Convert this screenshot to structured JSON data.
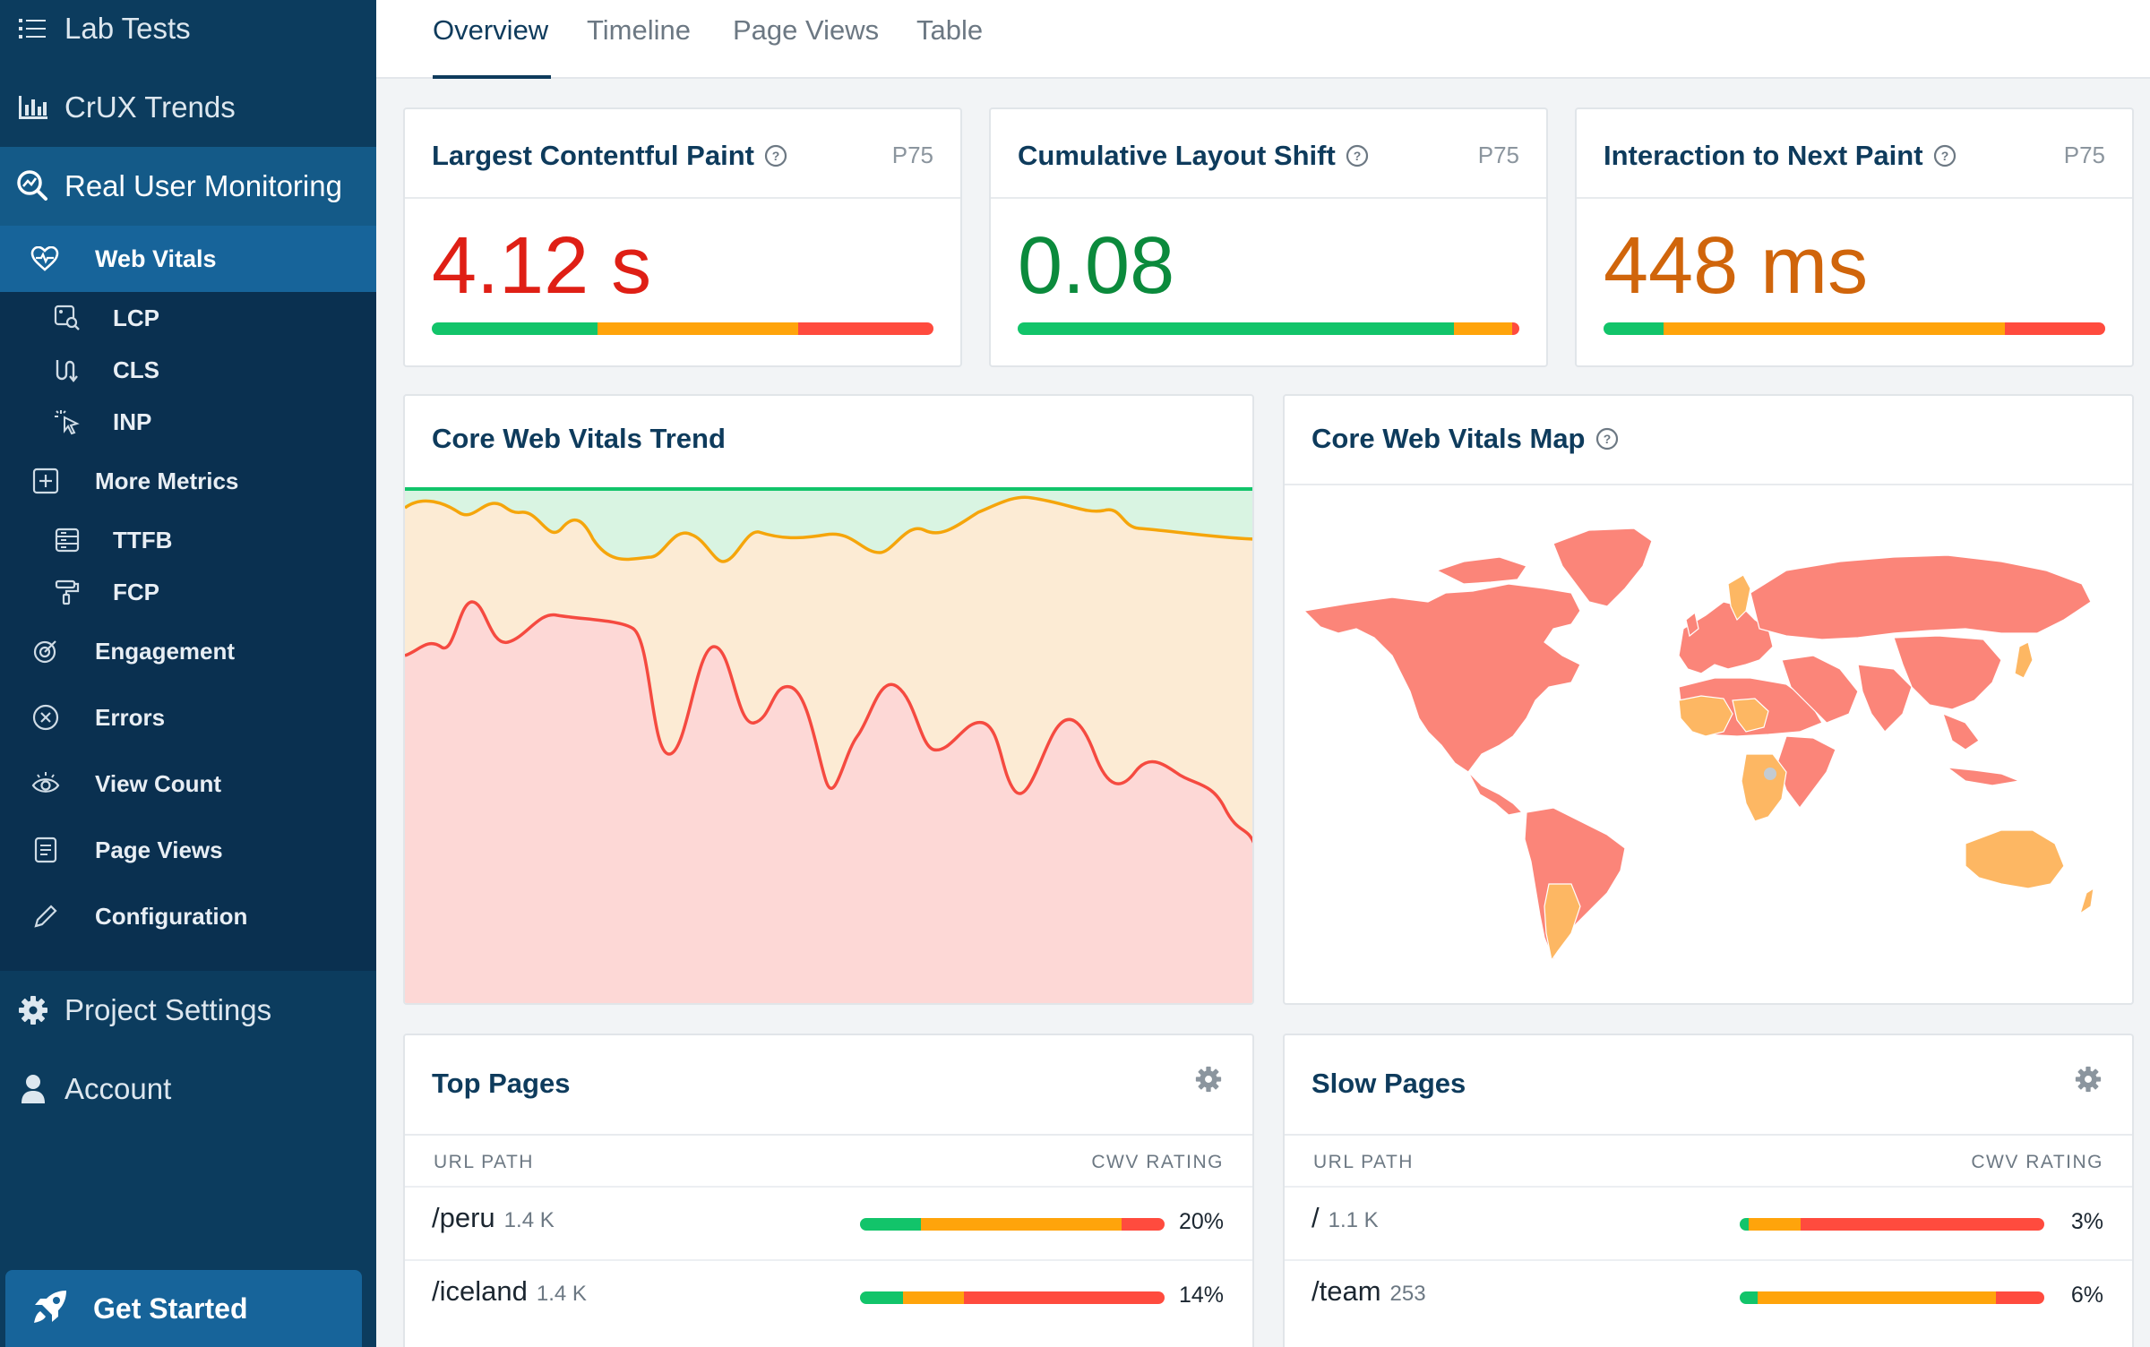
{
  "colors": {
    "good": "#12c46a",
    "ni": "#ffa40b",
    "poor": "#ff4b3e",
    "sidebar": "#0c3c5e",
    "accent": "#17649a"
  },
  "sidebar": {
    "lab_tests": "Lab Tests",
    "crux_trends": "CrUX Trends",
    "rum": "Real User Monitoring",
    "web_vitals": "Web Vitals",
    "lcp": "LCP",
    "cls": "CLS",
    "inp": "INP",
    "more_metrics": "More Metrics",
    "ttfb": "TTFB",
    "fcp": "FCP",
    "engagement": "Engagement",
    "errors": "Errors",
    "view_count": "View Count",
    "page_views": "Page Views",
    "configuration": "Configuration",
    "project_settings": "Project Settings",
    "account": "Account",
    "get_started": "Get Started"
  },
  "tabs": [
    "Overview",
    "Timeline",
    "Page Views",
    "Table"
  ],
  "kpis": [
    {
      "title": "Largest Contentful Paint",
      "p75": "P75",
      "value": "4.12 s",
      "color": "#df1f15",
      "dist": [
        0.33,
        0.4,
        0.27
      ]
    },
    {
      "title": "Cumulative Layout Shift",
      "p75": "P75",
      "value": "0.08",
      "color": "#0b8a3c",
      "dist": [
        0.87,
        0.115,
        0.015
      ]
    },
    {
      "title": "Interaction to Next Paint",
      "p75": "P75",
      "value": "448 ms",
      "color": "#d0650b",
      "dist": [
        0.12,
        0.68,
        0.2
      ]
    }
  ],
  "trend": {
    "title": "Core Web Vitals Trend"
  },
  "map": {
    "title": "Core Web Vitals Map"
  },
  "top_pages": {
    "title": "Top Pages",
    "col_url": "URL PATH",
    "col_rating": "CWV RATING",
    "rows": [
      {
        "path": "/peru",
        "count": "1.4 K",
        "pct": "20%",
        "dist": [
          0.2,
          0.66,
          0.14
        ]
      },
      {
        "path": "/iceland",
        "count": "1.4 K",
        "pct": "14%",
        "dist": [
          0.14,
          0.2,
          0.66
        ]
      }
    ]
  },
  "slow_pages": {
    "title": "Slow Pages",
    "col_url": "URL PATH",
    "col_rating": "CWV RATING",
    "rows": [
      {
        "path": "/",
        "count": "1.1 K",
        "pct": "3%",
        "dist": [
          0.03,
          0.17,
          0.8
        ]
      },
      {
        "path": "/team",
        "count": "253",
        "pct": "6%",
        "dist": [
          0.06,
          0.78,
          0.16
        ]
      }
    ]
  }
}
